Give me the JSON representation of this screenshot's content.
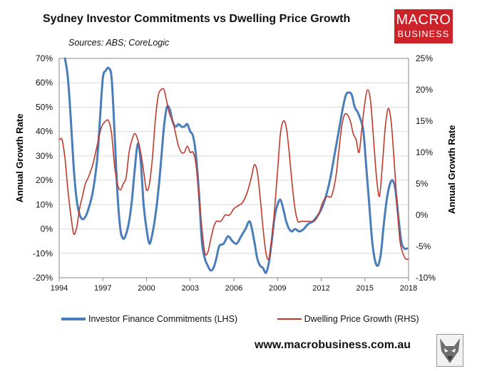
{
  "colors": {
    "lhs_series": "#4a7ebb",
    "rhs_series": "#c0392b",
    "brand_red": "#cc2229",
    "grid": "#d9d9d9"
  },
  "brand": {
    "logo_line1": "MACRO",
    "logo_line2": "BUSINESS",
    "url": "www.macrobusiness.com.au",
    "mascot_icon": "wolf-icon"
  },
  "chart_data": {
    "type": "line",
    "title": "Sydney Investor Commitments vs Dwelling Price Growth",
    "subtitle": "Sources: ABS; CoreLogic",
    "xlabel": "",
    "ylabel_left": "Annual Growth Rate",
    "ylabel_right": "Annual Growth Rate",
    "xlim": [
      1994,
      2018
    ],
    "ylim_left": [
      -20,
      70
    ],
    "ylim_right": [
      -10,
      25
    ],
    "x_ticks": [
      "1994",
      "1997",
      "2000",
      "2003",
      "2006",
      "2009",
      "2012",
      "2015",
      "2018"
    ],
    "y_left_ticks": [
      "-20%",
      "-10%",
      "0%",
      "10%",
      "20%",
      "30%",
      "40%",
      "50%",
      "60%",
      "70%"
    ],
    "y_right_ticks": [
      "-10%",
      "-5%",
      "0%",
      "5%",
      "10%",
      "15%",
      "20%",
      "25%"
    ],
    "grid": true,
    "legend_position": "bottom",
    "series": [
      {
        "name": "Investor Finance Commitments (LHS)",
        "axis": "left",
        "color": "#4a7ebb",
        "x": [
          1994.4,
          1994.6,
          1994.8,
          1995.0,
          1995.2,
          1995.4,
          1995.6,
          1995.8,
          1996.0,
          1996.3,
          1996.6,
          1996.8,
          1997.0,
          1997.2,
          1997.4,
          1997.6,
          1997.8,
          1998.0,
          1998.2,
          1998.4,
          1998.6,
          1998.8,
          1999.0,
          1999.2,
          1999.4,
          1999.6,
          1999.8,
          2000.0,
          2000.2,
          2000.4,
          2000.6,
          2000.8,
          2001.0,
          2001.2,
          2001.4,
          2001.6,
          2001.8,
          2002.0,
          2002.2,
          2002.4,
          2002.6,
          2002.8,
          2003.0,
          2003.2,
          2003.4,
          2003.6,
          2003.8,
          2004.0,
          2004.2,
          2004.4,
          2004.6,
          2004.8,
          2005.0,
          2005.3,
          2005.6,
          2005.9,
          2006.2,
          2006.5,
          2006.8,
          2007.1,
          2007.4,
          2007.6,
          2007.8,
          2008.0,
          2008.2,
          2008.4,
          2008.6,
          2008.8,
          2009.0,
          2009.2,
          2009.4,
          2009.6,
          2009.8,
          2010.0,
          2010.2,
          2010.5,
          2010.8,
          2011.1,
          2011.4,
          2011.7,
          2012.0,
          2012.3,
          2012.6,
          2012.9,
          2013.2,
          2013.5,
          2013.7,
          2013.9,
          2014.1,
          2014.3,
          2014.5,
          2014.7,
          2014.9,
          2015.1,
          2015.3,
          2015.5,
          2015.7,
          2015.9,
          2016.1,
          2016.3,
          2016.5,
          2016.7,
          2016.9,
          2017.1,
          2017.3,
          2017.5,
          2017.7,
          2017.9
        ],
        "values": [
          70,
          62,
          45,
          25,
          12,
          6,
          4,
          5,
          8,
          15,
          28,
          45,
          62,
          65,
          66,
          62,
          40,
          15,
          0,
          -4,
          -2,
          3,
          12,
          25,
          35,
          28,
          10,
          0,
          -6,
          -2,
          5,
          15,
          28,
          42,
          50,
          49,
          44,
          42,
          43,
          42,
          42,
          43,
          40,
          38,
          30,
          15,
          -5,
          -12,
          -15,
          -17,
          -16,
          -12,
          -7,
          -6,
          -3,
          -5,
          -6,
          -3,
          0,
          3,
          -5,
          -12,
          -15,
          -16,
          -18,
          -14,
          -5,
          5,
          10,
          12,
          8,
          3,
          0,
          -1,
          0,
          -1,
          0,
          2,
          3,
          5,
          8,
          13,
          20,
          30,
          40,
          50,
          55,
          56,
          55,
          50,
          48,
          45,
          40,
          25,
          10,
          -5,
          -13,
          -15,
          -10,
          2,
          12,
          18,
          20,
          16,
          5,
          -5,
          -8,
          -8
        ]
      },
      {
        "name": "Dwelling Price Growth (RHS)",
        "axis": "right",
        "color": "#c0392b",
        "x": [
          1994.0,
          1994.2,
          1994.4,
          1994.6,
          1994.8,
          1995.0,
          1995.2,
          1995.4,
          1995.6,
          1995.8,
          1996.0,
          1996.3,
          1996.6,
          1996.9,
          1997.2,
          1997.4,
          1997.6,
          1997.8,
          1998.0,
          1998.2,
          1998.4,
          1998.6,
          1998.8,
          1999.0,
          1999.2,
          1999.4,
          1999.6,
          1999.8,
          2000.0,
          2000.2,
          2000.4,
          2000.6,
          2000.8,
          2001.0,
          2001.2,
          2001.4,
          2001.6,
          2001.8,
          2002.0,
          2002.2,
          2002.4,
          2002.6,
          2002.8,
          2003.0,
          2003.2,
          2003.4,
          2003.6,
          2003.8,
          2004.0,
          2004.2,
          2004.4,
          2004.6,
          2004.8,
          2005.1,
          2005.4,
          2005.7,
          2006.0,
          2006.3,
          2006.6,
          2006.9,
          2007.2,
          2007.4,
          2007.6,
          2007.8,
          2008.0,
          2008.2,
          2008.4,
          2008.6,
          2008.8,
          2009.0,
          2009.2,
          2009.4,
          2009.6,
          2009.8,
          2010.0,
          2010.2,
          2010.4,
          2010.6,
          2010.8,
          2011.0,
          2011.2,
          2011.5,
          2011.8,
          2012.1,
          2012.4,
          2012.7,
          2013.0,
          2013.2,
          2013.4,
          2013.6,
          2013.8,
          2014.0,
          2014.2,
          2014.4,
          2014.6,
          2014.8,
          2015.0,
          2015.2,
          2015.4,
          2015.6,
          2015.8,
          2016.0,
          2016.2,
          2016.4,
          2016.6,
          2016.8,
          2017.0,
          2017.2,
          2017.4,
          2017.6,
          2017.8,
          2018.0
        ],
        "values": [
          12,
          12,
          9,
          4,
          0,
          -3,
          -2,
          1,
          3,
          5,
          6,
          8,
          11,
          14,
          15,
          15,
          13,
          8,
          5,
          4,
          5,
          6,
          10,
          12,
          13,
          12,
          10,
          7,
          4,
          5,
          9,
          15,
          19,
          20,
          20,
          18,
          16,
          15,
          13,
          11,
          10,
          10,
          11,
          10,
          10,
          8,
          3,
          -2,
          -6,
          -6,
          -4,
          -2,
          -1,
          -1,
          0,
          0,
          1,
          1.5,
          2,
          3.5,
          6,
          8,
          7,
          3,
          -2,
          -6,
          -7,
          -4,
          1,
          7,
          13,
          15,
          14,
          10,
          5,
          1,
          -1,
          -1,
          -1,
          -1,
          -1,
          -1,
          0,
          2,
          3,
          3,
          6,
          10,
          14,
          16,
          16,
          15,
          13,
          12,
          10,
          14,
          18,
          20,
          18,
          12,
          6,
          3,
          8,
          14,
          17,
          15,
          9,
          2,
          -4,
          -6,
          -7,
          -7
        ]
      }
    ]
  }
}
